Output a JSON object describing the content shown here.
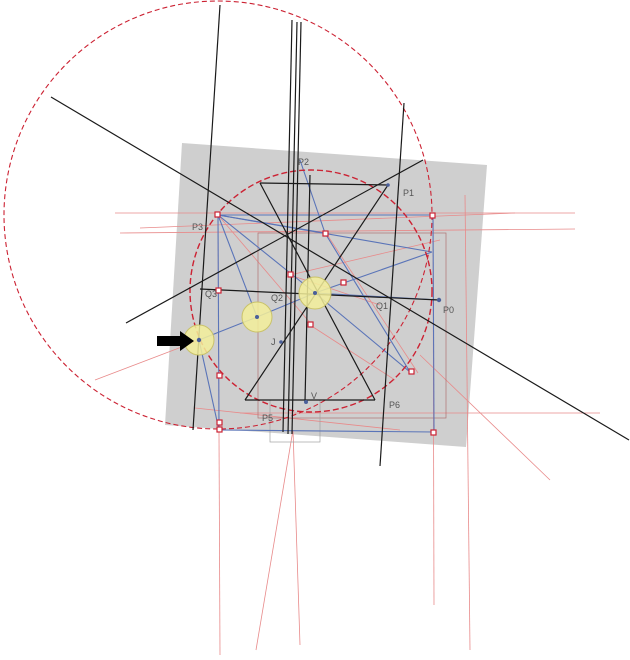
{
  "labels": {
    "p0": "P0",
    "p1": "P1",
    "p2": "P2",
    "p3": "P3",
    "p5": "P5",
    "p6": "P6",
    "q1": "Q1",
    "q2": "Q2",
    "q3": "Q3",
    "j": "J",
    "v": "V"
  },
  "colors": {
    "panel": "#cfcfcf",
    "red_dashed": "#cc2233",
    "thin_red": "#e88a8a",
    "blue": "#5a74b8",
    "black": "#1a1a1a",
    "yellow_fill": "#f3ee9a",
    "yellow_stroke": "#c9c26a"
  },
  "icons": {
    "arrow": "right-arrow-icon"
  }
}
